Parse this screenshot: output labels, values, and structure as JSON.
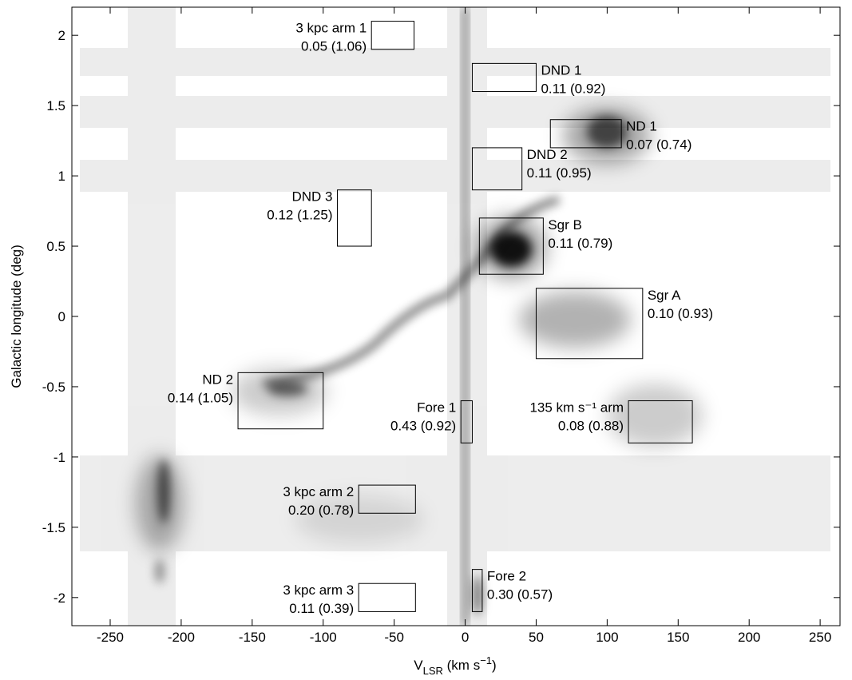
{
  "chart_data": {
    "type": "region-boxes",
    "xlabel": {
      "main": "V",
      "sub": "LSR",
      "unit": " (km s",
      "sup": "−1",
      "end": ")"
    },
    "ylabel": "Galactic longitude (deg)",
    "xlim": [
      -277,
      264
    ],
    "ylim": [
      -2.2,
      2.2
    ],
    "xticks": [
      -250,
      -200,
      -150,
      -100,
      -50,
      0,
      50,
      100,
      150,
      200,
      250
    ],
    "yticks": [
      2,
      1.5,
      1,
      0.5,
      0,
      -0.5,
      -1,
      -1.5,
      -2
    ],
    "regions": [
      {
        "name": "3 kpc arm 1",
        "stat": "0.05 (1.06)",
        "v": [
          -66,
          -36
        ],
        "l": [
          1.9,
          2.1
        ],
        "side": "left"
      },
      {
        "name": "DND 1",
        "stat": "0.11 (0.92)",
        "v": [
          5,
          50
        ],
        "l": [
          1.6,
          1.8
        ],
        "side": "right"
      },
      {
        "name": "ND 1",
        "stat": "0.07 (0.74)",
        "v": [
          60,
          110
        ],
        "l": [
          1.2,
          1.4
        ],
        "side": "right"
      },
      {
        "name": "DND 2",
        "stat": "0.11 (0.95)",
        "v": [
          5,
          40
        ],
        "l": [
          0.9,
          1.2
        ],
        "side": "right"
      },
      {
        "name": "DND 3",
        "stat": "0.12 (1.25)",
        "v": [
          -90,
          -66
        ],
        "l": [
          0.5,
          0.9
        ],
        "side": "left"
      },
      {
        "name": "Sgr B",
        "stat": "0.11 (0.79)",
        "v": [
          10,
          55
        ],
        "l": [
          0.3,
          0.7
        ],
        "side": "right"
      },
      {
        "name": "Sgr A",
        "stat": "0.10 (0.93)",
        "v": [
          50,
          125
        ],
        "l": [
          -0.3,
          0.2
        ],
        "side": "right"
      },
      {
        "name": "ND 2",
        "stat": "0.14 (1.05)",
        "v": [
          -160,
          -100
        ],
        "l": [
          -0.8,
          -0.4
        ],
        "side": "left"
      },
      {
        "name": "Fore 1",
        "stat": "0.43 (0.92)",
        "v": [
          -3,
          5
        ],
        "l": [
          -0.9,
          -0.6
        ],
        "side": "left"
      },
      {
        "name": "135 km s⁻¹ arm",
        "stat": "0.08 (0.88)",
        "v": [
          115,
          160
        ],
        "l": [
          -0.9,
          -0.6
        ],
        "side": "left"
      },
      {
        "name": "3 kpc arm 2",
        "stat": "0.20 (0.78)",
        "v": [
          -75,
          -35
        ],
        "l": [
          -1.4,
          -1.2
        ],
        "side": "left"
      },
      {
        "name": "Fore 2",
        "stat": "0.30 (0.57)",
        "v": [
          5,
          12
        ],
        "l": [
          -2.1,
          -1.8
        ],
        "side": "right"
      },
      {
        "name": "3 kpc arm 3",
        "stat": "0.11 (0.39)",
        "v": [
          -75,
          -35
        ],
        "l": [
          -2.1,
          -1.9
        ],
        "side": "left"
      }
    ]
  }
}
